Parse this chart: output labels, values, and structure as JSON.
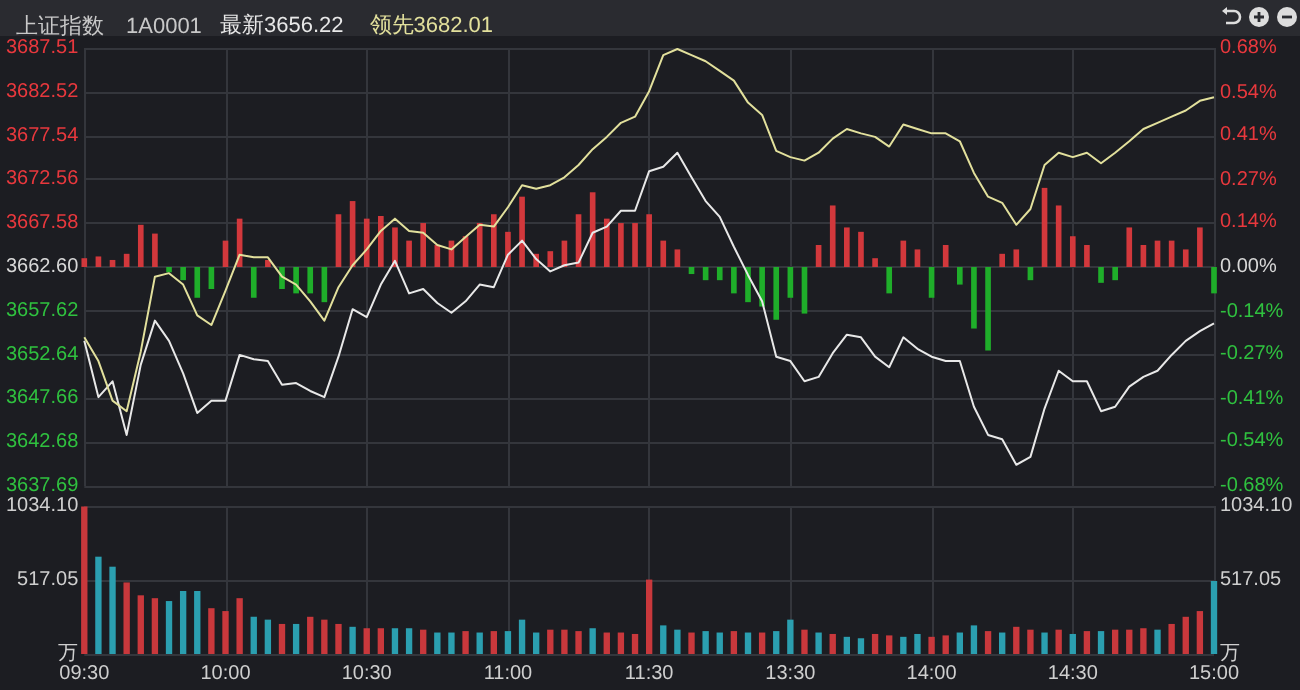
{
  "chart_data": [
    {
      "type": "line",
      "title": "上证指数",
      "subtitle": "1A0001",
      "categories": [
        null,
        null,
        null,
        null,
        null,
        null,
        null,
        null,
        null,
        null,
        null,
        null,
        null,
        null,
        null,
        null,
        null,
        null,
        null,
        null,
        null,
        null,
        null,
        null,
        null,
        null,
        null,
        null,
        null,
        null,
        null,
        null,
        null,
        null,
        null,
        null,
        null,
        null,
        null,
        null,
        null,
        null,
        null,
        null,
        null,
        null,
        null,
        null,
        null,
        null,
        null,
        null,
        null,
        null,
        null,
        null,
        null,
        null,
        null,
        null,
        null,
        null,
        null,
        null,
        null,
        null,
        null,
        null,
        null,
        null,
        null,
        null,
        null,
        null,
        null,
        null,
        null,
        null,
        null,
        null,
        null
      ],
      "series": [
        {
          "type": "bar",
          "base": [
            3662.6,
            3662.6,
            3662.6,
            3662.6,
            3662.6,
            3662.6,
            3662.6,
            3662.6,
            3662.6,
            3662.6,
            3662.6,
            3662.6,
            3662.6,
            3662.6,
            3662.6,
            3662.6,
            3662.6,
            3662.6,
            3662.6,
            3662.6,
            3662.6,
            3662.6,
            3662.6,
            3662.6,
            3662.6,
            3662.6,
            3662.6,
            3662.6,
            3662.6,
            3662.6,
            3662.6,
            3662.6,
            3662.6,
            3662.6,
            3662.6,
            3662.6,
            3662.6,
            3662.6,
            3662.6,
            3662.6,
            3662.6,
            3662.6,
            3662.6,
            3662.6,
            3662.6,
            3662.6,
            3662.6,
            3662.6,
            3662.6,
            3662.6,
            3662.6,
            3662.6,
            3662.6,
            3662.6,
            3662.6,
            3662.6,
            3662.6,
            3662.6,
            3662.6,
            3662.6,
            3662.6,
            3662.6,
            3662.6,
            3662.6,
            3662.6,
            3662.6,
            3662.6,
            3662.6,
            3662.6,
            3662.6,
            3662.6,
            3662.6,
            3662.6,
            3662.6,
            3662.6,
            3662.6,
            3662.6,
            3662.6,
            3662.6,
            3662.6,
            3662.6
          ],
          "values": [
            1.0,
            1.2,
            0.8,
            1.5,
            4.8,
            3.8,
            -0.6,
            -1.5,
            -3.5,
            -2.5,
            3.0,
            5.5,
            -3.5,
            0.8,
            -2.5,
            -3.0,
            -3.0,
            -4.0,
            6.0,
            7.5,
            5.5,
            5.8,
            4.5,
            3.0,
            5.0,
            2.5,
            3.0,
            3.5,
            5.0,
            6.0,
            4.0,
            8.0,
            1.5,
            1.8,
            3.0,
            6.0,
            8.5,
            5.5,
            5.0,
            5.0,
            6.0,
            3.0,
            2.0,
            -0.8,
            -1.5,
            -1.5,
            -3.0,
            -4.0,
            -4.5,
            -6.0,
            -3.5,
            -5.3,
            2.5,
            7.0,
            4.5,
            4.0,
            1.0,
            -3.0,
            3.0,
            2.0,
            -3.5,
            2.5,
            -2.0,
            -7.0,
            -9.5,
            1.5,
            2.0,
            -1.5,
            9.0,
            7.0,
            3.5,
            2.5,
            -1.8,
            -1.5,
            4.5,
            2.5,
            3.0,
            3.0,
            2.0,
            4.5,
            -3.0
          ],
          "colors": [
            "#d2383c",
            "#d2383c",
            "#d2383c",
            "#d2383c",
            "#d2383c",
            "#d2383c",
            "#1fae2a",
            "#1fae2a",
            "#1fae2a",
            "#1fae2a",
            "#d2383c",
            "#d2383c",
            "#1fae2a",
            "#d2383c",
            "#1fae2a",
            "#1fae2a",
            "#1fae2a",
            "#1fae2a",
            "#d2383c",
            "#d2383c",
            "#d2383c",
            "#d2383c",
            "#d2383c",
            "#d2383c",
            "#d2383c",
            "#d2383c",
            "#d2383c",
            "#d2383c",
            "#d2383c",
            "#d2383c",
            "#d2383c",
            "#d2383c",
            "#d2383c",
            "#d2383c",
            "#d2383c",
            "#d2383c",
            "#d2383c",
            "#d2383c",
            "#d2383c",
            "#d2383c",
            "#d2383c",
            "#d2383c",
            "#d2383c",
            "#1fae2a",
            "#1fae2a",
            "#1fae2a",
            "#1fae2a",
            "#1fae2a",
            "#1fae2a",
            "#1fae2a",
            "#1fae2a",
            "#1fae2a",
            "#d2383c",
            "#d2383c",
            "#d2383c",
            "#d2383c",
            "#d2383c",
            "#1fae2a",
            "#d2383c",
            "#d2383c",
            "#1fae2a",
            "#d2383c",
            "#1fae2a",
            "#1fae2a",
            "#1fae2a",
            "#d2383c",
            "#d2383c",
            "#1fae2a",
            "#d2383c",
            "#d2383c",
            "#d2383c",
            "#d2383c",
            "#1fae2a",
            "#1fae2a",
            "#d2383c",
            "#d2383c",
            "#d2383c",
            "#d2383c",
            "#d2383c",
            "#d2383c",
            "#1fae2a"
          ]
        },
        {
          "name": "最新3656.22",
          "color": "#e8e8e8",
          "values": [
            3654.2,
            3647.8,
            3649.6,
            3643.5,
            3651.5,
            3656.5,
            3654.2,
            3650.5,
            3646.0,
            3647.4,
            3647.4,
            3652.6,
            3652.1,
            3651.9,
            3649.2,
            3649.4,
            3648.5,
            3647.8,
            3652.4,
            3657.8,
            3656.9,
            3660.6,
            3663.3,
            3659.6,
            3660.1,
            3658.5,
            3657.4,
            3658.7,
            3660.6,
            3660.3,
            3664.0,
            3665.6,
            3663.5,
            3662.1,
            3662.8,
            3663.1,
            3666.5,
            3667.2,
            3669.0,
            3669.0,
            3673.5,
            3674.0,
            3675.6,
            3672.8,
            3670.1,
            3668.3,
            3664.9,
            3661.7,
            3658.7,
            3652.4,
            3651.9,
            3649.6,
            3650.1,
            3652.8,
            3654.9,
            3654.6,
            3652.4,
            3651.2,
            3654.6,
            3653.3,
            3652.4,
            3651.9,
            3651.9,
            3646.7,
            3643.5,
            3643.0,
            3640.1,
            3641.0,
            3646.5,
            3650.8,
            3649.6,
            3649.6,
            3646.2,
            3646.7,
            3649.0,
            3650.1,
            3650.8,
            3652.6,
            3654.2,
            3655.3,
            3656.2
          ]
        },
        {
          "name": "领先3682.01",
          "color": "#e2e09c",
          "values": [
            3654.6,
            3651.9,
            3647.4,
            3646.2,
            3653.0,
            3661.5,
            3661.9,
            3660.6,
            3657.1,
            3656.0,
            3659.9,
            3664.0,
            3663.7,
            3663.7,
            3661.5,
            3660.6,
            3658.7,
            3656.5,
            3660.3,
            3662.8,
            3664.6,
            3666.7,
            3668.1,
            3666.7,
            3666.5,
            3665.1,
            3664.6,
            3666.0,
            3667.4,
            3667.2,
            3669.4,
            3671.9,
            3671.5,
            3671.9,
            3672.8,
            3674.2,
            3676.0,
            3677.4,
            3679.0,
            3679.7,
            3682.6,
            3686.7,
            3687.4,
            3686.7,
            3686.0,
            3684.9,
            3683.8,
            3681.3,
            3679.9,
            3675.8,
            3675.1,
            3674.7,
            3675.6,
            3677.2,
            3678.3,
            3677.8,
            3677.4,
            3676.3,
            3678.8,
            3678.3,
            3677.8,
            3677.8,
            3676.9,
            3673.3,
            3670.6,
            3669.9,
            3667.4,
            3669.2,
            3674.2,
            3675.6,
            3675.1,
            3675.6,
            3674.4,
            3675.6,
            3676.9,
            3678.3,
            3679.0,
            3679.7,
            3680.4,
            3681.5,
            3681.9
          ]
        }
      ],
      "ylim": [
        3637.69,
        3687.51
      ],
      "yticks": [
        3637.69,
        3642.68,
        3647.66,
        3652.64,
        3657.62,
        {
          "value": 3662.6,
          "label": "3662.60"
        },
        3667.58,
        3672.56,
        3677.54,
        3682.52,
        3687.51
      ],
      "y2lim": [
        -0.68,
        0.68
      ],
      "y2ticks": [
        {
          "value": -0.68,
          "label": "-0.68%"
        },
        {
          "value": -0.54,
          "label": "-0.54%"
        },
        {
          "value": -0.41,
          "label": "-0.41%"
        },
        {
          "value": -0.27,
          "label": "-0.27%"
        },
        {
          "value": -0.14,
          "label": "-0.14%"
        },
        {
          "value": 0,
          "label": "0.00%"
        },
        {
          "value": 0.14,
          "label": "0.14%"
        },
        {
          "value": 0.27,
          "label": "0.27%"
        },
        {
          "value": 0.41,
          "label": "0.41%"
        },
        {
          "value": 0.54,
          "label": "0.54%"
        },
        {
          "value": 0.68,
          "label": "0.68%"
        }
      ],
      "grid": true,
      "legend": "top left",
      "tick_labels": "y"
    },
    {
      "type": "bar",
      "categories": [
        "09:30",
        null,
        null,
        null,
        null,
        null,
        null,
        null,
        null,
        null,
        "10:00",
        null,
        null,
        null,
        null,
        null,
        null,
        null,
        null,
        null,
        "10:30",
        null,
        null,
        null,
        null,
        null,
        null,
        null,
        null,
        null,
        "11:00",
        null,
        null,
        null,
        null,
        null,
        null,
        null,
        null,
        null,
        "11:30",
        null,
        null,
        null,
        null,
        null,
        null,
        null,
        null,
        null,
        "13:30",
        null,
        null,
        null,
        null,
        null,
        null,
        null,
        null,
        null,
        "14:00",
        null,
        null,
        null,
        null,
        null,
        null,
        null,
        null,
        null,
        "14:30",
        null,
        null,
        null,
        null,
        null,
        null,
        null,
        null,
        null,
        "15:00"
      ],
      "series": [
        {
          "values": [
            1030,
            680,
            610,
            500,
            410,
            390,
            370,
            440,
            440,
            320,
            300,
            390,
            260,
            240,
            210,
            210,
            260,
            240,
            210,
            190,
            180,
            180,
            180,
            180,
            170,
            150,
            150,
            160,
            150,
            160,
            160,
            240,
            150,
            170,
            170,
            160,
            180,
            150,
            150,
            140,
            520,
            200,
            170,
            150,
            160,
            150,
            160,
            150,
            150,
            160,
            240,
            170,
            150,
            140,
            120,
            110,
            140,
            130,
            120,
            140,
            120,
            130,
            150,
            200,
            160,
            150,
            190,
            170,
            150,
            170,
            140,
            160,
            160,
            170,
            170,
            180,
            170,
            210,
            260,
            300,
            510
          ],
          "colors": [
            "#c9383c",
            "#2b9fb0",
            "#2b9fb0",
            "#c9383c",
            "#c9383c",
            "#c9383c",
            "#2b9fb0",
            "#2b9fb0",
            "#2b9fb0",
            "#c9383c",
            "#c9383c",
            "#c9383c",
            "#2b9fb0",
            "#2b9fb0",
            "#c9383c",
            "#2b9fb0",
            "#c9383c",
            "#c9383c",
            "#c9383c",
            "#2b9fb0",
            "#c9383c",
            "#c9383c",
            "#2b9fb0",
            "#2b9fb0",
            "#c9383c",
            "#2b9fb0",
            "#2b9fb0",
            "#c9383c",
            "#2b9fb0",
            "#c9383c",
            "#2b9fb0",
            "#2b9fb0",
            "#2b9fb0",
            "#c9383c",
            "#c9383c",
            "#c9383c",
            "#2b9fb0",
            "#c9383c",
            "#c9383c",
            "#c9383c",
            "#c9383c",
            "#2b9fb0",
            "#2b9fb0",
            "#c9383c",
            "#2b9fb0",
            "#2b9fb0",
            "#c9383c",
            "#2b9fb0",
            "#c9383c",
            "#2b9fb0",
            "#2b9fb0",
            "#c9383c",
            "#2b9fb0",
            "#c9383c",
            "#2b9fb0",
            "#2b9fb0",
            "#c9383c",
            "#c9383c",
            "#2b9fb0",
            "#2b9fb0",
            "#c9383c",
            "#c9383c",
            "#2b9fb0",
            "#2b9fb0",
            "#c9383c",
            "#2b9fb0",
            "#c9383c",
            "#c9383c",
            "#2b9fb0",
            "#c9383c",
            "#2b9fb0",
            "#c9383c",
            "#2b9fb0",
            "#c9383c",
            "#c9383c",
            "#c9383c",
            "#2b9fb0",
            "#c9383c",
            "#c9383c",
            "#c9383c",
            "#2b9fb0"
          ]
        }
      ],
      "ylim": [
        0,
        1034.1
      ],
      "yticks": [
        {
          "value": 0,
          "label": "万"
        },
        517.05,
        {
          "value": 1034.1,
          "label": "1034.10"
        }
      ],
      "y2lim": [
        0,
        1034.1
      ],
      "y2ticks": [
        {
          "value": 0,
          "label": "万"
        },
        517.05,
        {
          "value": 1034.1,
          "label": "1034.10"
        }
      ],
      "grid": true
    }
  ]
}
